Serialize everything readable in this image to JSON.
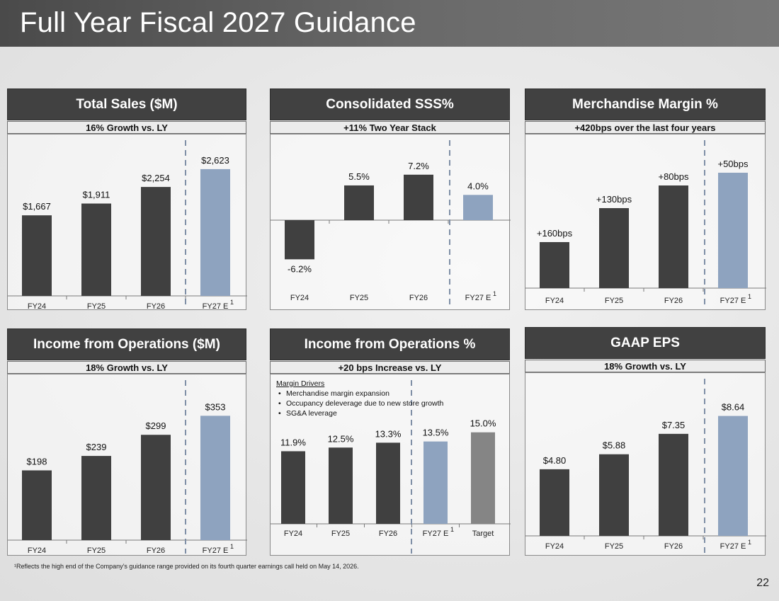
{
  "title": "Full Year Fiscal 2027 Guidance",
  "footnote": "¹Reflects the high end of the Company’s guidance range provided on its fourth quarter earnings call held on May 14, 2026.",
  "page_number": "22",
  "colors": {
    "historical": "#404040",
    "estimate": "#8ea3bf",
    "target": "#858585"
  },
  "panels": [
    {
      "header": "Total Sales ($M)",
      "subheader": "16% Growth vs. LY"
    },
    {
      "header": "Consolidated SSS%",
      "subheader": "+11% Two Year Stack"
    },
    {
      "header": "Merchandise Margin %",
      "subheader": "+420bps over the last four years"
    },
    {
      "header": "Income from Operations ($M)",
      "subheader": "18% Growth vs. LY"
    },
    {
      "header": "Income from Operations %",
      "subheader": "+20 bps Increase vs. LY",
      "drivers": {
        "title": "Margin Drivers",
        "items": [
          "Merchandise margin expansion",
          "Occupancy deleverage due to new store growth",
          "SG&A leverage"
        ]
      }
    },
    {
      "header": "GAAP EPS",
      "subheader": "18% Growth vs. LY"
    }
  ],
  "chart_data": [
    {
      "type": "bar",
      "title": "Total Sales ($M)",
      "categories": [
        "FY24",
        "FY25",
        "FY26",
        "FY27 E"
      ],
      "values": [
        1667,
        1911,
        2254,
        2623
      ],
      "labels": [
        "$1,667",
        "$1,911",
        "$2,254",
        "$2,623"
      ],
      "estimate_index": [
        3
      ],
      "footnote_marker": "1",
      "ylim": [
        0,
        2900
      ]
    },
    {
      "type": "bar",
      "title": "Consolidated SSS%",
      "categories": [
        "FY24",
        "FY25",
        "FY26",
        "FY27 E"
      ],
      "values": [
        -6.2,
        5.5,
        7.2,
        4.0
      ],
      "labels": [
        "-6.2%",
        "5.5%",
        "7.2%",
        "4.0%"
      ],
      "estimate_index": [
        3
      ],
      "footnote_marker": "1",
      "ylim": [
        -8.5,
        10.2
      ]
    },
    {
      "type": "bar",
      "title": "Merchandise Margin %",
      "categories": [
        "FY24",
        "FY25",
        "FY26",
        "FY27 E"
      ],
      "values": [
        160,
        130,
        80,
        50
      ],
      "labels": [
        "+160bps",
        "+130bps",
        "+80bps",
        "+50bps"
      ],
      "estimate_index": [
        3
      ],
      "footnote_marker": "1"
    },
    {
      "type": "bar",
      "title": "Income from Operations ($M)",
      "categories": [
        "FY24",
        "FY25",
        "FY26",
        "FY27 E"
      ],
      "values": [
        198,
        239,
        299,
        353
      ],
      "labels": [
        "$198",
        "$239",
        "$299",
        "$353"
      ],
      "estimate_index": [
        3
      ],
      "footnote_marker": "1",
      "ylim": [
        0,
        410
      ]
    },
    {
      "type": "bar",
      "title": "Income from Operations %",
      "categories": [
        "FY24",
        "FY25",
        "FY26",
        "FY27 E",
        "Target"
      ],
      "values": [
        11.9,
        12.5,
        13.3,
        13.5,
        15.0
      ],
      "labels": [
        "11.9%",
        "12.5%",
        "13.3%",
        "13.5%",
        "15.0%"
      ],
      "estimate_index": [
        3
      ],
      "target_index": [
        4
      ],
      "footnote_marker": "1",
      "ylim": [
        0,
        21
      ]
    },
    {
      "type": "bar",
      "title": "GAAP EPS",
      "categories": [
        "FY24",
        "FY25",
        "FY26",
        "FY27 E"
      ],
      "values": [
        4.8,
        5.88,
        7.35,
        8.64
      ],
      "labels": [
        "$4.80",
        "$5.88",
        "$7.35",
        "$8.64"
      ],
      "estimate_index": [
        3
      ],
      "footnote_marker": "1",
      "ylim": [
        0,
        10.2
      ]
    }
  ]
}
